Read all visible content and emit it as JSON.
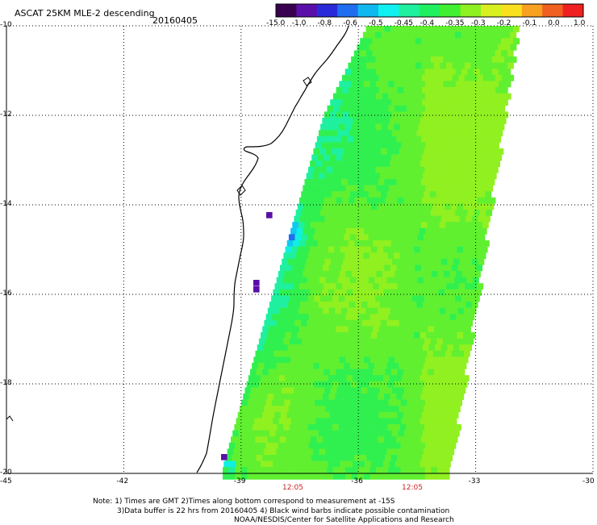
{
  "header": {
    "title": "ASCAT 25KM MLE-2 descending",
    "date": "20160405"
  },
  "colorbar": {
    "labels": [
      "-15.0",
      "-1.0",
      "-0.8",
      "-0.6",
      "-0.5",
      "-0.45",
      "-0.4",
      "-0.35",
      "-0.3",
      "-0.2",
      "-0.1",
      "0.0",
      "1.0"
    ],
    "colors": [
      "#3a0050",
      "#5a10a8",
      "#2a2ad8",
      "#1f6ef0",
      "#10b8f0",
      "#10f0f0",
      "#1ef0a0",
      "#20f060",
      "#40f030",
      "#8ef020",
      "#d8f020",
      "#f8e020",
      "#f8a020",
      "#f06020",
      "#f02020"
    ]
  },
  "map": {
    "lat_labels": [
      "-10",
      "-12",
      "-14",
      "-16",
      "-18",
      "-20"
    ],
    "lon_labels": [
      "-45",
      "-42",
      "-39",
      "-36",
      "-33",
      "-30"
    ],
    "time_labels": [
      "12:05",
      "12:05"
    ]
  },
  "notes": {
    "line1": "Note: 1) Times are GMT 2)Times along bottom correspond to measurement at -15S",
    "line2": "3)Data buffer is 22 hrs from 20160405 4) Black wind barbs indicate possible contamination",
    "line3": "NOAA/NESDIS/Center for Satellite Applications and Research"
  }
}
